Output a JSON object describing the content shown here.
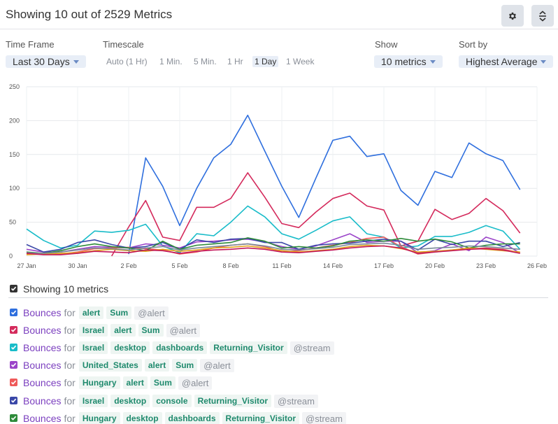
{
  "header": {
    "title": "Showing 10 out of 2529 Metrics",
    "settings_icon": "gear-icon",
    "sort_icon": "sort-icon"
  },
  "controls": {
    "timeframe": {
      "label": "Time Frame",
      "value": "Last 30 Days"
    },
    "timescale": {
      "label": "Timescale",
      "options": [
        "Auto (1 Hr)",
        "1 Min.",
        "5 Min.",
        "1 Hr",
        "1 Day",
        "1 Week"
      ],
      "selected": "1 Day"
    },
    "show": {
      "label": "Show",
      "value": "10 metrics"
    },
    "sortby": {
      "label": "Sort by",
      "value": "Highest Average"
    }
  },
  "chart_data": {
    "type": "line",
    "ylim": [
      0,
      250
    ],
    "yticks": [
      0,
      50,
      100,
      150,
      200,
      250
    ],
    "xlim": [
      0,
      30
    ],
    "xticks": [
      {
        "x": 0,
        "label": "27 Jan"
      },
      {
        "x": 3,
        "label": "30 Jan"
      },
      {
        "x": 6,
        "label": "2 Feb"
      },
      {
        "x": 9,
        "label": "5 Feb"
      },
      {
        "x": 12,
        "label": "8 Feb"
      },
      {
        "x": 15,
        "label": "11 Feb"
      },
      {
        "x": 18,
        "label": "14 Feb"
      },
      {
        "x": 21,
        "label": "17 Feb"
      },
      {
        "x": 24,
        "label": "20 Feb"
      },
      {
        "x": 27,
        "label": "23 Feb"
      },
      {
        "x": 30,
        "label": "26 Feb"
      }
    ],
    "grid": true,
    "series": [
      {
        "color": "#2f6fde",
        "x": [
          6,
          7,
          8,
          9,
          10,
          11,
          12,
          13,
          14,
          15,
          16,
          17,
          18,
          19,
          20,
          21,
          22,
          23,
          24,
          25,
          26,
          27,
          28,
          29
        ],
        "values": [
          3,
          145,
          103,
          45,
          100,
          145,
          165,
          208,
          155,
          103,
          57,
          115,
          171,
          177,
          147,
          151,
          97,
          75,
          125,
          116,
          167,
          151,
          141,
          98
        ]
      },
      {
        "color": "#d42a5c",
        "x": [
          5,
          6,
          7,
          8,
          9,
          10,
          11,
          12,
          13,
          14,
          15,
          16,
          17,
          18,
          19,
          20,
          21,
          22,
          23,
          24,
          25,
          26,
          27,
          28,
          29
        ],
        "values": [
          0,
          43,
          82,
          28,
          23,
          72,
          72,
          85,
          123,
          87,
          48,
          42,
          65,
          85,
          93,
          74,
          68,
          15,
          22,
          69,
          54,
          63,
          85,
          67,
          34
        ]
      },
      {
        "color": "#19bcc9",
        "x": [
          0,
          1,
          2,
          3,
          4,
          5,
          6,
          7,
          8,
          9,
          10,
          11,
          12,
          13,
          14,
          15,
          16,
          17,
          18,
          19,
          20,
          21,
          22,
          23,
          24,
          25,
          26,
          27,
          28,
          29
        ],
        "values": [
          40,
          23,
          12,
          16,
          37,
          35,
          38,
          47,
          15,
          5,
          33,
          30,
          50,
          74,
          58,
          33,
          25,
          38,
          52,
          58,
          33,
          28,
          12,
          15,
          29,
          29,
          35,
          45,
          37,
          10
        ]
      },
      {
        "color": "#9b44c9",
        "x": [
          0,
          1,
          2,
          3,
          4,
          5,
          6,
          7,
          8,
          9,
          10,
          11,
          12,
          13,
          14,
          15,
          16,
          17,
          18,
          19,
          20,
          21,
          22,
          23,
          24,
          25,
          26,
          27,
          28,
          29
        ],
        "values": [
          10,
          6,
          6,
          10,
          14,
          13,
          12,
          18,
          16,
          12,
          21,
          22,
          24,
          25,
          21,
          14,
          10,
          15,
          24,
          33,
          20,
          22,
          22,
          5,
          8,
          18,
          8,
          28,
          20,
          4
        ]
      },
      {
        "color": "#ef5a5a",
        "x": [
          0,
          1,
          2,
          3,
          4,
          5,
          6,
          7,
          8,
          9,
          10,
          11,
          12,
          13,
          14,
          15,
          16,
          17,
          18,
          19,
          20,
          21,
          22,
          23,
          24,
          25,
          26,
          27,
          28,
          29
        ],
        "values": [
          3,
          3,
          3,
          6,
          11,
          12,
          13,
          11,
          9,
          3,
          6,
          12,
          16,
          18,
          14,
          6,
          8,
          12,
          16,
          20,
          26,
          28,
          14,
          3,
          6,
          9,
          11,
          12,
          10,
          5
        ]
      },
      {
        "color": "#3a47a8",
        "x": [
          0,
          1,
          2,
          3,
          4,
          5,
          6,
          7,
          8,
          9,
          10,
          11,
          12,
          13,
          14,
          15,
          16,
          17,
          18,
          19,
          20,
          21,
          22,
          23,
          24,
          25,
          26,
          27,
          28,
          29
        ],
        "values": [
          17,
          6,
          10,
          20,
          24,
          17,
          12,
          14,
          20,
          10,
          24,
          20,
          25,
          26,
          20,
          20,
          10,
          16,
          18,
          19,
          22,
          25,
          22,
          9,
          25,
          17,
          22,
          22,
          14,
          20
        ]
      },
      {
        "color": "#2e8b3a",
        "x": [
          0,
          1,
          2,
          3,
          4,
          5,
          6,
          7,
          8,
          9,
          10,
          11,
          12,
          13,
          14,
          15,
          16,
          17,
          18,
          19,
          20,
          21,
          22,
          23,
          24,
          25,
          26,
          27,
          28,
          29
        ],
        "values": [
          6,
          4,
          8,
          14,
          18,
          14,
          12,
          8,
          22,
          10,
          16,
          18,
          20,
          27,
          22,
          12,
          14,
          12,
          15,
          22,
          24,
          22,
          26,
          22,
          25,
          21,
          12,
          16,
          18,
          18
        ]
      },
      {
        "color": "#e3a21a",
        "x": [
          0,
          1,
          2,
          3,
          4,
          5,
          6,
          7,
          8,
          9,
          10,
          11,
          12,
          13,
          14,
          15,
          16,
          17,
          18,
          19,
          20,
          21,
          22,
          23,
          24,
          25,
          26,
          27,
          28,
          29
        ],
        "values": [
          2,
          3,
          4,
          5,
          8,
          10,
          8,
          7,
          10,
          7,
          9,
          12,
          13,
          15,
          12,
          8,
          6,
          8,
          10,
          14,
          16,
          15,
          11,
          6,
          7,
          9,
          12,
          10,
          8,
          6
        ]
      },
      {
        "color": "#7a8a99",
        "x": [
          0,
          1,
          2,
          3,
          4,
          5,
          6,
          7,
          8,
          9,
          10,
          11,
          12,
          13,
          14,
          15,
          16,
          17,
          18,
          19,
          20,
          21,
          22,
          23,
          24,
          25,
          26,
          27,
          28,
          29
        ],
        "values": [
          5,
          4,
          6,
          9,
          12,
          11,
          9,
          12,
          14,
          9,
          12,
          14,
          16,
          18,
          15,
          10,
          9,
          11,
          13,
          17,
          18,
          19,
          16,
          10,
          12,
          13,
          15,
          14,
          12,
          10
        ]
      },
      {
        "color": "#c2185b",
        "x": [
          0,
          1,
          2,
          3,
          4,
          5,
          6,
          7,
          8,
          9,
          10,
          11,
          12,
          13,
          14,
          15,
          16,
          17,
          18,
          19,
          20,
          21,
          22,
          23,
          24,
          25,
          26,
          27,
          28,
          29
        ],
        "values": [
          4,
          2,
          2,
          4,
          7,
          6,
          5,
          9,
          8,
          4,
          7,
          9,
          10,
          12,
          10,
          6,
          5,
          7,
          9,
          12,
          14,
          15,
          12,
          4,
          6,
          8,
          10,
          11,
          9,
          4
        ]
      }
    ]
  },
  "legend": {
    "header": "Showing 10 metrics",
    "for_word": "for",
    "rows": [
      {
        "color": "#2f6fde",
        "metric": "Bounces",
        "tags": [
          "alert",
          "Sum"
        ],
        "source": "@alert"
      },
      {
        "color": "#d42a5c",
        "metric": "Bounces",
        "tags": [
          "Israel",
          "alert",
          "Sum"
        ],
        "source": "@alert"
      },
      {
        "color": "#19bcc9",
        "metric": "Bounces",
        "tags": [
          "Israel",
          "desktop",
          "dashboards",
          "Returning_Visitor"
        ],
        "source": "@stream"
      },
      {
        "color": "#9b44c9",
        "metric": "Bounces",
        "tags": [
          "United_States",
          "alert",
          "Sum"
        ],
        "source": "@alert"
      },
      {
        "color": "#ef5a5a",
        "metric": "Bounces",
        "tags": [
          "Hungary",
          "alert",
          "Sum"
        ],
        "source": "@alert"
      },
      {
        "color": "#3a47a8",
        "metric": "Bounces",
        "tags": [
          "Israel",
          "desktop",
          "console",
          "Returning_Visitor"
        ],
        "source": "@stream"
      },
      {
        "color": "#2e8b3a",
        "metric": "Bounces",
        "tags": [
          "Hungary",
          "desktop",
          "dashboards",
          "Returning_Visitor"
        ],
        "source": "@stream"
      }
    ]
  }
}
